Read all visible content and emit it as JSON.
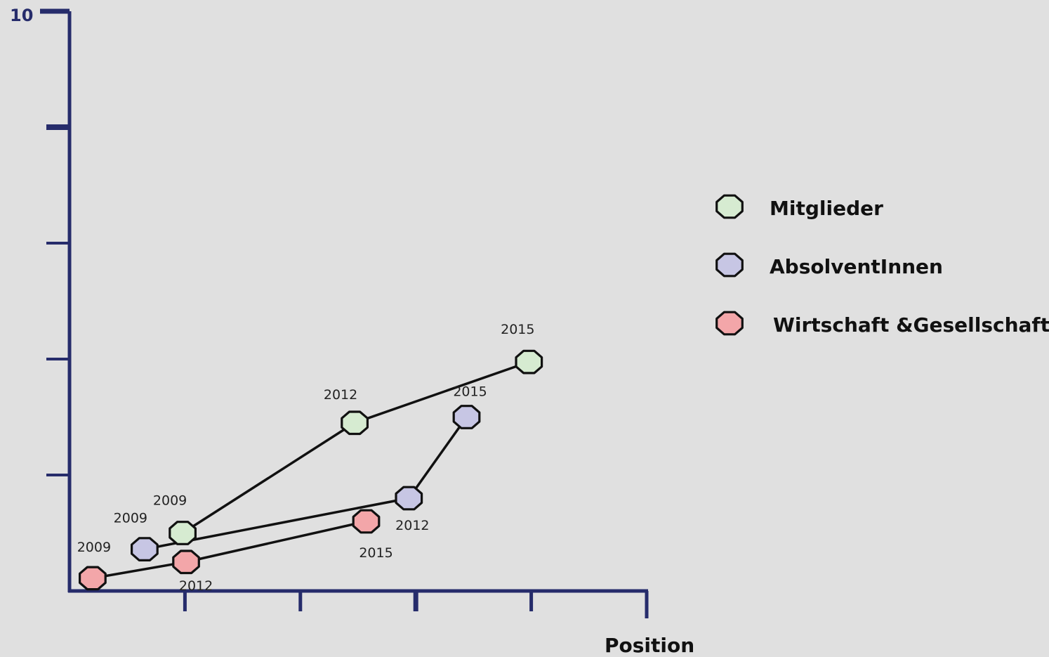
{
  "chart_data": {
    "type": "scatter",
    "xlabel": "Position",
    "ylabel": "",
    "ytick_top_label": "10",
    "xlim": [
      0,
      5
    ],
    "ylim": [
      0,
      10
    ],
    "grid": false,
    "legend_position": "right",
    "series": [
      {
        "name": "Mitglieder",
        "color": "#d6ebd1",
        "points": [
          {
            "label": "2009",
            "x": 0.98,
            "y": 1.0
          },
          {
            "label": "2012",
            "x": 2.47,
            "y": 2.9
          },
          {
            "label": "2015",
            "x": 3.98,
            "y": 3.95
          }
        ]
      },
      {
        "name": "AbsolventInnen",
        "color": "#c7c6e4",
        "points": [
          {
            "label": "2009",
            "x": 0.65,
            "y": 0.72
          },
          {
            "label": "2012",
            "x": 2.94,
            "y": 1.6
          },
          {
            "label": "2015",
            "x": 3.44,
            "y": 3.0
          }
        ]
      },
      {
        "name": "Wirtschaft &Gesellschaft",
        "color": "#f3a6a9",
        "points": [
          {
            "label": "2009",
            "x": 0.2,
            "y": 0.22
          },
          {
            "label": "2012",
            "x": 1.01,
            "y": 0.5
          },
          {
            "label": "2015",
            "x": 2.57,
            "y": 1.2
          }
        ]
      }
    ]
  }
}
